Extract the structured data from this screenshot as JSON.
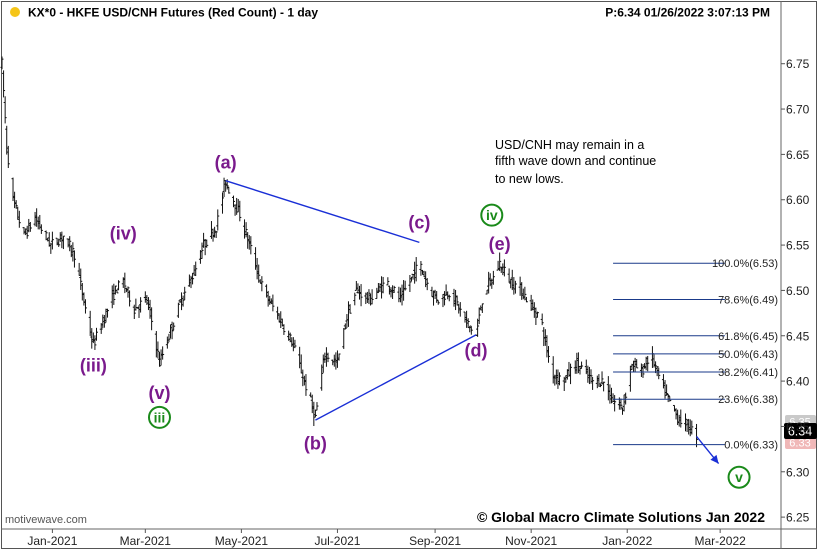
{
  "header": {
    "symbol_title": "KX*0 - HKFE USD/CNH Futures (Red Count) - 1 day",
    "price_time": "P:6.34  01/26/2022 3:07:13 PM"
  },
  "footer": {
    "source": "motivewave.com",
    "copyright": "© Global Macro Climate Solutions Jan 2022"
  },
  "annotation": {
    "lines": [
      "USD/CNH may remain in a",
      "fifth wave down and continue",
      "to new lows."
    ]
  },
  "price_tags": {
    "current": "6.34",
    "hidden_a": "6.35",
    "hidden_b": "6.33"
  },
  "colors": {
    "wave_purple": "#7a1a8c",
    "wave_green": "#1a8a1a",
    "trendline_blue": "#1a2fd6",
    "fib_line": "#1a3a8a",
    "bars": "#111111"
  },
  "chart_data": {
    "type": "ohlc",
    "title": "KX*0 - HKFE USD/CNH Futures (Red Count) - 1 day",
    "x_ticks": [
      "Jan-2021",
      "Mar-2021",
      "May-2021",
      "Jul-2021",
      "Sep-2021",
      "Nov-2021",
      "Jan-2022",
      "Mar-2022"
    ],
    "x_tick_dates": [
      "2021-01-01",
      "2021-03-01",
      "2021-05-01",
      "2021-07-01",
      "2021-09-01",
      "2021-11-01",
      "2022-01-01",
      "2022-03-01"
    ],
    "x_range": [
      "2020-11-30",
      "2022-04-08"
    ],
    "y_ticks": [
      "6.25",
      "6.30",
      "6.35",
      "6.40",
      "6.45",
      "6.50",
      "6.55",
      "6.60",
      "6.65",
      "6.70",
      "6.75"
    ],
    "y_tick_values": [
      6.25,
      6.3,
      6.35,
      6.4,
      6.45,
      6.5,
      6.55,
      6.6,
      6.65,
      6.7,
      6.75
    ],
    "ylim": [
      6.238,
      6.796
    ],
    "y_axis_position": "right",
    "grid": false,
    "price_path": [
      [
        "2020-11-30",
        6.75
      ],
      [
        "2020-12-03",
        6.66
      ],
      [
        "2020-12-07",
        6.6
      ],
      [
        "2020-12-14",
        6.56
      ],
      [
        "2020-12-21",
        6.58
      ],
      [
        "2020-12-31",
        6.55
      ],
      [
        "2021-01-08",
        6.56
      ],
      [
        "2021-01-15",
        6.54
      ],
      [
        "2021-01-22",
        6.48
      ],
      [
        "2021-01-27",
        6.44
      ],
      [
        "2021-02-03",
        6.47
      ],
      [
        "2021-02-10",
        6.5
      ],
      [
        "2021-02-15",
        6.51
      ],
      [
        "2021-02-22",
        6.48
      ],
      [
        "2021-03-02",
        6.49
      ],
      [
        "2021-03-07",
        6.45
      ],
      [
        "2021-03-10",
        6.42
      ],
      [
        "2021-03-18",
        6.46
      ],
      [
        "2021-03-24",
        6.49
      ],
      [
        "2021-04-01",
        6.52
      ],
      [
        "2021-04-07",
        6.55
      ],
      [
        "2021-04-15",
        6.57
      ],
      [
        "2021-04-21",
        6.62
      ],
      [
        "2021-04-26",
        6.6
      ],
      [
        "2021-05-01",
        6.58
      ],
      [
        "2021-05-08",
        6.54
      ],
      [
        "2021-05-15",
        6.5
      ],
      [
        "2021-05-25",
        6.47
      ],
      [
        "2021-06-03",
        6.44
      ],
      [
        "2021-06-10",
        6.4
      ],
      [
        "2021-06-17",
        6.36
      ],
      [
        "2021-06-23",
        6.43
      ],
      [
        "2021-07-01",
        6.42
      ],
      [
        "2021-07-07",
        6.47
      ],
      [
        "2021-07-13",
        6.5
      ],
      [
        "2021-07-22",
        6.49
      ],
      [
        "2021-08-01",
        6.51
      ],
      [
        "2021-08-10",
        6.49
      ],
      [
        "2021-08-22",
        6.53
      ],
      [
        "2021-08-29",
        6.5
      ],
      [
        "2021-09-03",
        6.49
      ],
      [
        "2021-09-11",
        6.5
      ],
      [
        "2021-09-19",
        6.47
      ],
      [
        "2021-09-27",
        6.45
      ],
      [
        "2021-10-02",
        6.5
      ],
      [
        "2021-10-07",
        6.51
      ],
      [
        "2021-10-12",
        6.53
      ],
      [
        "2021-10-19",
        6.51
      ],
      [
        "2021-10-26",
        6.5
      ],
      [
        "2021-11-02",
        6.48
      ],
      [
        "2021-11-07",
        6.47
      ],
      [
        "2021-11-14",
        6.41
      ],
      [
        "2021-11-21",
        6.4
      ],
      [
        "2021-11-30",
        6.42
      ],
      [
        "2021-12-10",
        6.4
      ],
      [
        "2021-12-17",
        6.4
      ],
      [
        "2021-12-22",
        6.38
      ],
      [
        "2021-12-29",
        6.37
      ],
      [
        "2022-01-04",
        6.42
      ],
      [
        "2022-01-10",
        6.41
      ],
      [
        "2022-01-16",
        6.43
      ],
      [
        "2022-01-22",
        6.4
      ],
      [
        "2022-01-27",
        6.38
      ],
      [
        "2022-02-02",
        6.36
      ],
      [
        "2022-02-09",
        6.35
      ],
      [
        "2022-02-14",
        6.34
      ]
    ],
    "wave_labels": [
      {
        "text": "(a)",
        "date": "2021-04-21",
        "price": 6.641,
        "color": "purple"
      },
      {
        "text": "(iv)",
        "date": "2021-02-15",
        "price": 6.563,
        "color": "purple"
      },
      {
        "text": "(c)",
        "date": "2021-08-22",
        "price": 6.575,
        "color": "purple"
      },
      {
        "text": "(e)",
        "date": "2021-10-12",
        "price": 6.551,
        "color": "purple"
      },
      {
        "text": "(iii)",
        "date": "2021-01-27",
        "price": 6.417,
        "color": "purple"
      },
      {
        "text": "(v)",
        "date": "2021-03-10",
        "price": 6.387,
        "color": "purple"
      },
      {
        "text": "(b)",
        "date": "2021-06-17",
        "price": 6.331,
        "color": "purple"
      },
      {
        "text": "(d)",
        "date": "2021-09-27",
        "price": 6.434,
        "color": "purple"
      }
    ],
    "circled_labels": [
      {
        "text": "iv",
        "date": "2021-10-07",
        "price": 6.583
      },
      {
        "text": "iii",
        "date": "2021-03-10",
        "price": 6.36
      },
      {
        "text": "v",
        "date": "2022-03-13",
        "price": 6.294
      }
    ],
    "trendlines": [
      {
        "from": [
          "2021-04-21",
          6.621
        ],
        "to": [
          "2021-08-22",
          6.553
        ]
      },
      {
        "from": [
          "2021-06-17",
          6.357
        ],
        "to": [
          "2021-09-27",
          6.451
        ]
      }
    ],
    "projection_arrow": {
      "from": [
        "2022-02-14",
        6.339
      ],
      "to": [
        "2022-02-28",
        6.309
      ]
    },
    "fibonacci_levels": [
      {
        "ratio": "100.0%",
        "price": 6.53,
        "label": "100.0%(6.53)"
      },
      {
        "ratio": "78.6%",
        "price": 6.49,
        "label": "78.6%(6.49)"
      },
      {
        "ratio": "61.8%",
        "price": 6.45,
        "label": "61.8%(6.45)"
      },
      {
        "ratio": "50.0%",
        "price": 6.43,
        "label": "50.0%(6.43)"
      },
      {
        "ratio": "38.2%",
        "price": 6.41,
        "label": "38.2%(6.41)"
      },
      {
        "ratio": "23.6%",
        "price": 6.38,
        "label": "23.6%(6.38)"
      },
      {
        "ratio": "0.0%",
        "price": 6.33,
        "label": "0.0%(6.33)"
      }
    ],
    "fib_range": [
      "2021-12-23",
      "2022-03-04"
    ]
  }
}
